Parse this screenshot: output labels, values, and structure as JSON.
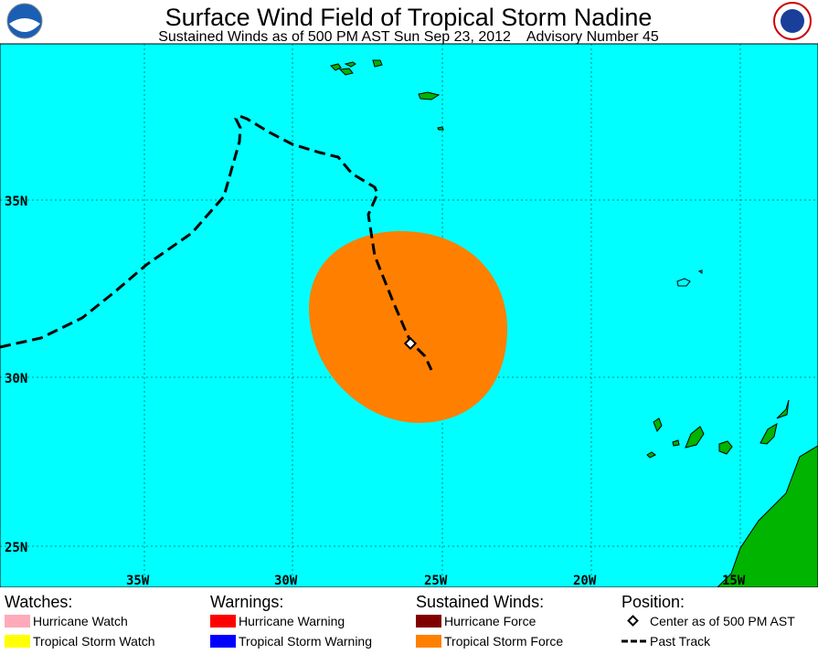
{
  "header": {
    "title": "Surface Wind Field of Tropical Storm Nadine",
    "subtitle": "Sustained Winds as of 500 PM AST Sun Sep 23, 2012    Advisory Number 45"
  },
  "map": {
    "lat_labels": [
      "35N",
      "30N",
      "25N"
    ],
    "lon_labels": [
      "35W",
      "30W",
      "25W",
      "20W",
      "15W"
    ]
  },
  "legend": {
    "watches": {
      "title": "Watches:",
      "items": [
        "Hurricane Watch",
        "Tropical Storm Watch"
      ]
    },
    "warnings": {
      "title": "Warnings:",
      "items": [
        "Hurricane Warning",
        "Tropical Storm Warning"
      ]
    },
    "winds": {
      "title": "Sustained Winds:",
      "items": [
        "Hurricane Force",
        "Tropical Storm Force"
      ]
    },
    "position": {
      "title": "Position:",
      "items": [
        "Center as of 500 PM AST",
        "Past Track"
      ]
    }
  }
}
